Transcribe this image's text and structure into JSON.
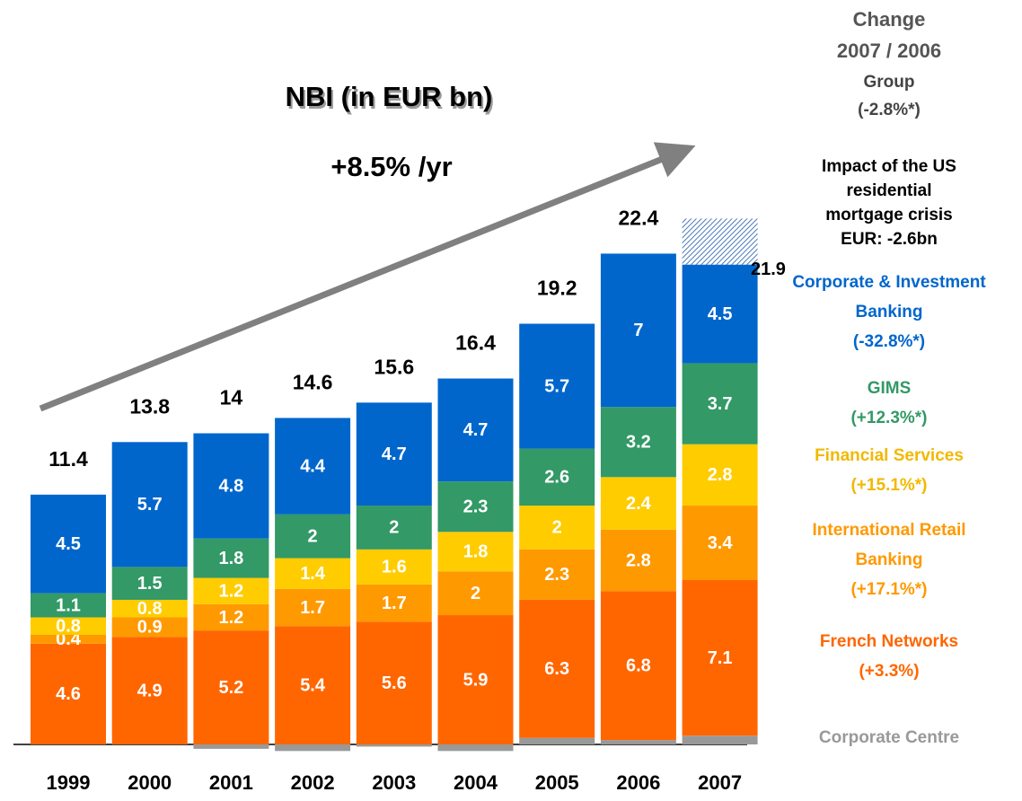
{
  "chart_data": {
    "type": "stacked_bar",
    "title": "NBI (in EUR bn)",
    "subtitle": "+8.5% /yr",
    "change_heading": "Change",
    "change_period": "2007 / 2006",
    "group_name": "Group",
    "group_change": "(-2.8%*)",
    "impact_note": [
      "Impact of the US",
      "residential",
      "mortgage crisis",
      "EUR: -2.6bn"
    ],
    "impact_value": 2.1,
    "categories": [
      "1999",
      "2000",
      "2001",
      "2002",
      "2003",
      "2004",
      "2005",
      "2006",
      "2007"
    ],
    "totals": [
      11.4,
      13.8,
      14.0,
      14.6,
      15.6,
      16.4,
      19.2,
      22.4,
      21.9
    ],
    "series": [
      {
        "name": "Corporate Centre",
        "color": "#999999",
        "values": [
          0,
          0,
          -0.2,
          -0.3,
          -0.1,
          -0.3,
          0.3,
          0.2,
          0.4
        ],
        "labeled": false
      },
      {
        "name": "French Networks",
        "change": "(+3.3%)",
        "color": "#ff6600",
        "values": [
          4.6,
          4.9,
          5.2,
          5.4,
          5.6,
          5.9,
          6.3,
          6.8,
          7.1
        ],
        "labeled": true
      },
      {
        "name": "International Retail Banking",
        "change": "(+17.1%*)",
        "color": "#ff9900",
        "values": [
          0.4,
          0.9,
          1.2,
          1.7,
          1.7,
          2.0,
          2.3,
          2.8,
          3.4
        ],
        "labeled": true
      },
      {
        "name": "Financial Services",
        "change": "(+15.1%*)",
        "color": "#ffcc00",
        "values": [
          0.8,
          0.8,
          1.2,
          1.4,
          1.6,
          1.8,
          2.0,
          2.4,
          2.8
        ],
        "labeled": true
      },
      {
        "name": "GIMS",
        "change": "(+12.3%*)",
        "color": "#339966",
        "values": [
          1.1,
          1.5,
          1.8,
          2.0,
          2.0,
          2.3,
          2.6,
          3.2,
          3.7
        ],
        "labeled": true
      },
      {
        "name": "Corporate & Investment Banking",
        "change": "(-32.8%*)",
        "color": "#0066cc",
        "values": [
          4.5,
          5.7,
          4.8,
          4.4,
          4.7,
          4.7,
          5.7,
          7.0,
          4.5
        ],
        "labeled": true
      }
    ]
  }
}
